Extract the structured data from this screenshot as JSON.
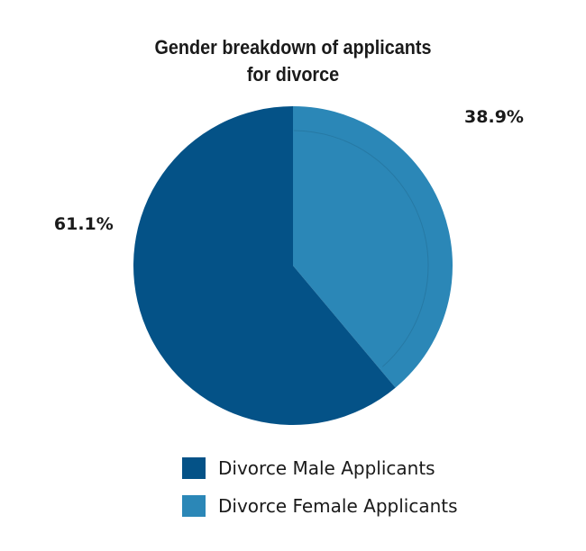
{
  "chart_data": {
    "type": "pie",
    "title": [
      "Gender breakdown of applicants",
      "for divorce"
    ],
    "slices": [
      {
        "name": "Divorce Female Applicants",
        "value": 38.9,
        "label": "38.9%",
        "color": "#2b87b7"
      },
      {
        "name": "Divorce Male Applicants",
        "value": 61.1,
        "label": "61.1%",
        "color": "#045287"
      }
    ],
    "start_angle_deg": 0,
    "direction": "clockwise",
    "legend": {
      "position": "bottom",
      "items": [
        {
          "label": "Divorce Male Applicants",
          "color": "#045287"
        },
        {
          "label": "Divorce Female Applicants",
          "color": "#2b87b7"
        }
      ]
    }
  }
}
